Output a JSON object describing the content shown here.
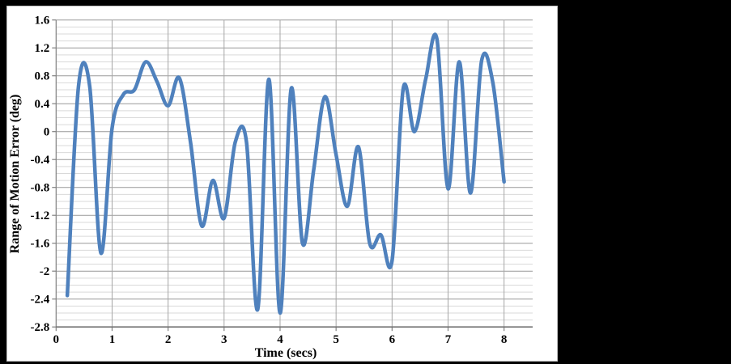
{
  "page": {
    "background_color": "#000000",
    "card_background": "#ffffff",
    "card_border_color": "#bfbfbf"
  },
  "chart_data": {
    "type": "line",
    "title": "",
    "xlabel": "Time (secs)",
    "ylabel": "Range of Motion Error (deg)",
    "line_color": "#4F81BD",
    "line_width": 4.5,
    "smoothed": true,
    "grid": true,
    "legend": "none",
    "xlim": [
      0,
      8.5
    ],
    "ylim": [
      -2.8,
      1.6
    ],
    "x_tick_values": [
      0,
      1,
      2,
      3,
      4,
      5,
      6,
      7,
      8
    ],
    "x_tick_labels": [
      "0",
      "1",
      "2",
      "3",
      "4",
      "5",
      "6",
      "7",
      "8"
    ],
    "y_tick_values": [
      1.6,
      1.2,
      0.8,
      0.4,
      0,
      -0.4,
      -0.8,
      -1.2,
      -1.6,
      -2,
      -2.4,
      -2.8
    ],
    "y_tick_labels": [
      "1.6",
      "1.2",
      "0.8",
      "0.4",
      "0",
      "-0.4",
      "-0.8",
      "-1.2",
      "-1.6",
      "-2",
      "-2.4",
      "-2.8"
    ],
    "y_major_step": 0.4,
    "y_minor_step": 0.1,
    "major_grid_color": "#999999",
    "minor_grid_color": "#d9d9d9",
    "vertical_grid_color": "#a6a6a6",
    "axis_color": "#808080",
    "x": [
      0.2,
      0.4,
      0.6,
      0.8,
      1.0,
      1.2,
      1.4,
      1.6,
      1.8,
      2.0,
      2.2,
      2.4,
      2.6,
      2.8,
      3.0,
      3.2,
      3.4,
      3.6,
      3.8,
      4.0,
      4.2,
      4.4,
      4.6,
      4.8,
      5.0,
      5.2,
      5.4,
      5.6,
      5.8,
      6.0,
      6.2,
      6.4,
      6.6,
      6.8,
      7.0,
      7.2,
      7.4,
      7.6,
      7.8,
      8.0
    ],
    "y": [
      -2.35,
      0.65,
      0.65,
      -1.74,
      0.05,
      0.53,
      0.6,
      1.0,
      0.72,
      0.37,
      0.77,
      -0.15,
      -1.35,
      -0.7,
      -1.24,
      -0.15,
      -0.15,
      -2.55,
      0.75,
      -2.6,
      0.62,
      -1.6,
      -0.55,
      0.5,
      -0.33,
      -1.07,
      -0.22,
      -1.6,
      -1.48,
      -1.85,
      0.62,
      0.0,
      0.75,
      1.33,
      -0.82,
      1.0,
      -0.88,
      1.02,
      0.7,
      -0.72
    ]
  }
}
